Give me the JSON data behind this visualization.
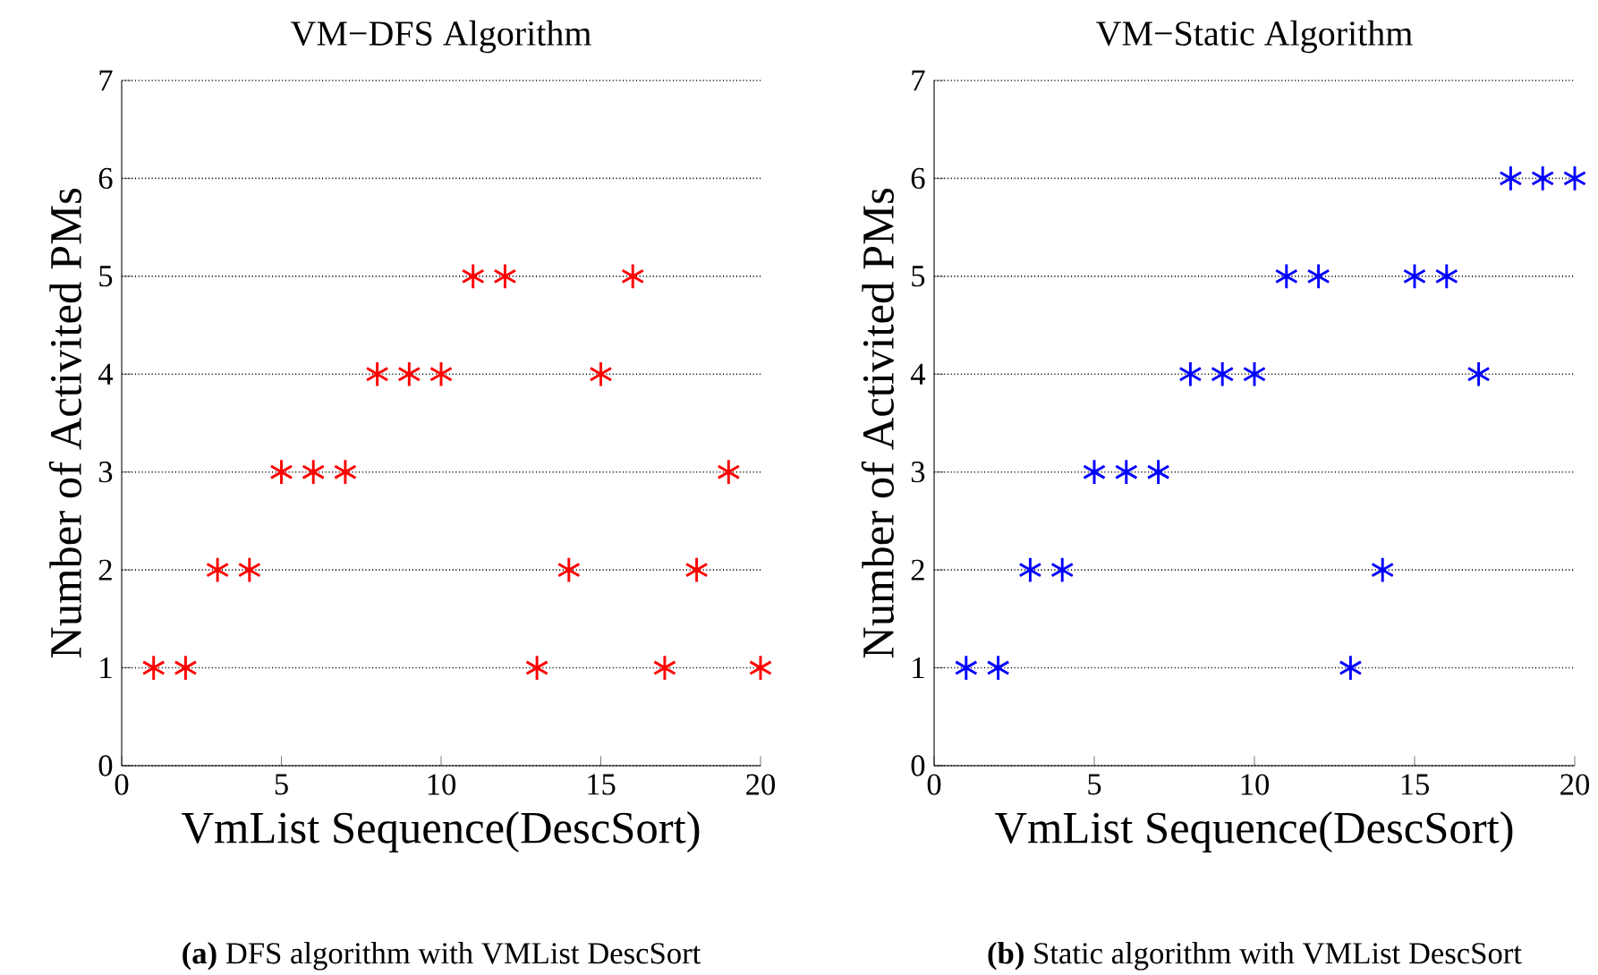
{
  "chart_data": [
    {
      "type": "scatter",
      "title": "VM−DFS Algorithm",
      "xlabel": "VmList Sequence(DescSort)",
      "ylabel": "Number of Activited PMs",
      "x": [
        1,
        2,
        3,
        4,
        5,
        6,
        7,
        8,
        9,
        10,
        11,
        12,
        13,
        14,
        15,
        16,
        17,
        18,
        19,
        20
      ],
      "series": [
        {
          "color": "#ff0000",
          "values": [
            1,
            1,
            2,
            2,
            3,
            3,
            3,
            4,
            4,
            4,
            5,
            5,
            1,
            2,
            4,
            5,
            1,
            2,
            3,
            1
          ]
        }
      ],
      "xlim": [
        0,
        20
      ],
      "ylim": [
        0,
        7
      ],
      "xticks": [
        0,
        5,
        10,
        15,
        20
      ],
      "yticks": [
        0,
        1,
        2,
        3,
        4,
        5,
        6,
        7
      ],
      "grid": "y",
      "marker": "cross",
      "annotations": [
        "**(a)** DFS algorithm with VMList DescSort"
      ]
    },
    {
      "type": "scatter",
      "title": "VM−Static Algorithm",
      "xlabel": "VmList Sequence(DescSort)",
      "ylabel": "Number of Activited PMs",
      "x": [
        1,
        2,
        3,
        4,
        5,
        6,
        7,
        8,
        9,
        10,
        11,
        12,
        13,
        14,
        15,
        16,
        17,
        18,
        19,
        20
      ],
      "series": [
        {
          "color": "#0000ff",
          "values": [
            1,
            1,
            2,
            2,
            3,
            3,
            3,
            4,
            4,
            4,
            5,
            5,
            1,
            2,
            5,
            5,
            4,
            6,
            6,
            6
          ]
        }
      ],
      "xlim": [
        0,
        20
      ],
      "ylim": [
        0,
        7
      ],
      "xticks": [
        0,
        5,
        10,
        15,
        20
      ],
      "yticks": [
        0,
        1,
        2,
        3,
        4,
        5,
        6,
        7
      ],
      "grid": "y",
      "marker": "cross",
      "annotations": [
        "**(b)** Static algorithm with VMList DescSort"
      ]
    }
  ]
}
